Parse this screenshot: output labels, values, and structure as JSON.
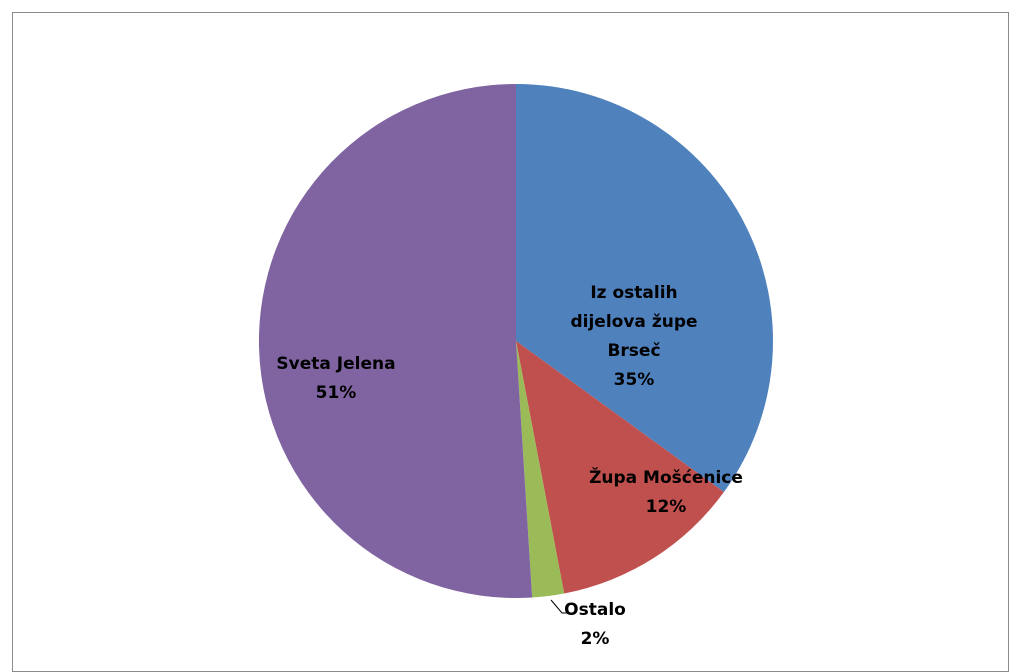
{
  "chart_data": {
    "type": "pie",
    "title": "",
    "slices": [
      {
        "name": "Iz ostalih dijelova župe Brseč",
        "label_lines": [
          "Iz ostalih",
          "dijelova župe",
          "Brseč"
        ],
        "pct_label": "35%",
        "value": 35,
        "color": "#4F81BD"
      },
      {
        "name": "Župa Mošćenice",
        "label_lines": [
          "Župa Mošćenice"
        ],
        "pct_label": "12%",
        "value": 12,
        "color": "#C0504D"
      },
      {
        "name": "Ostalo",
        "label_lines": [
          "Ostalo"
        ],
        "pct_label": "2%",
        "value": 2,
        "color": "#9BBB59"
      },
      {
        "name": "Sveta Jelena",
        "label_lines": [
          "Sveta Jelena"
        ],
        "pct_label": "51%",
        "value": 51,
        "color": "#8064A2"
      }
    ],
    "legend": "none",
    "data_labels": "category-and-percent"
  }
}
